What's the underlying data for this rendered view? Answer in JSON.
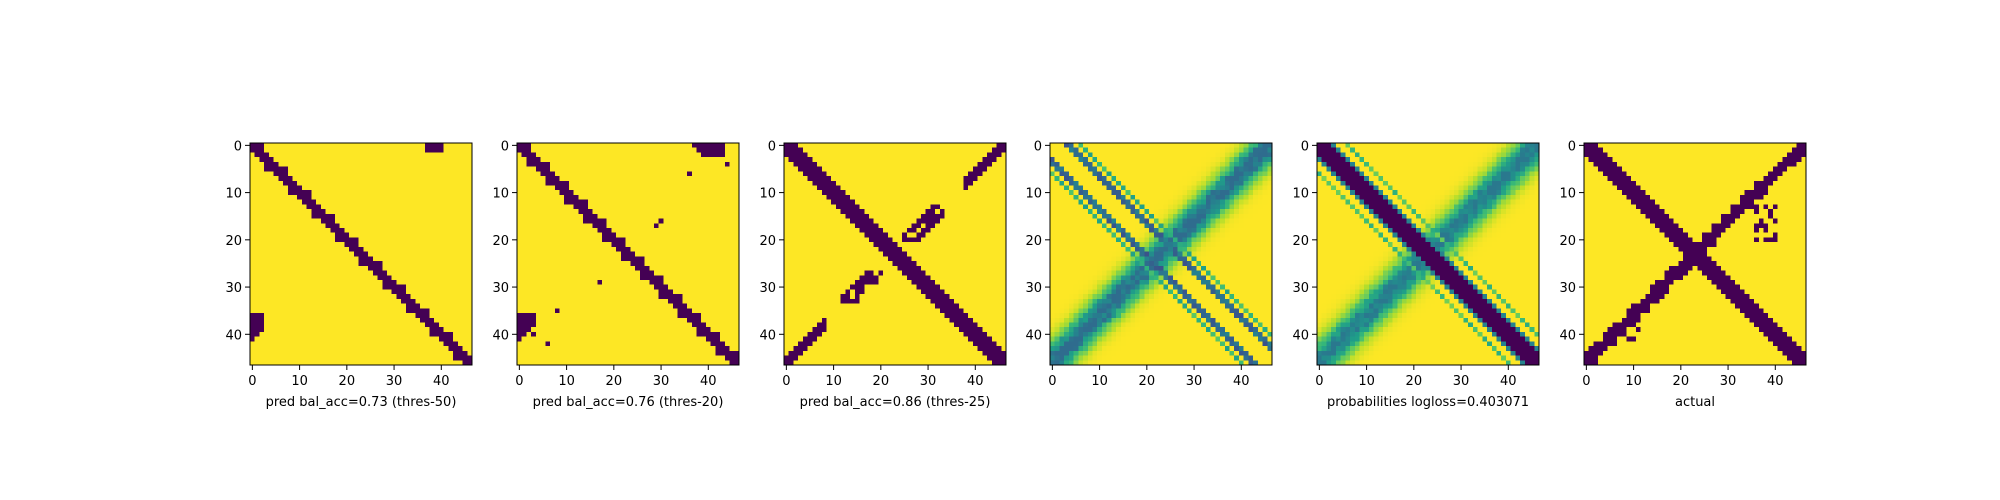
{
  "figure": {
    "colormap": "viridis",
    "colors": {
      "low": "#440154",
      "high": "#fde725"
    },
    "grid": false
  },
  "chart_data": [
    {
      "type": "heatmap",
      "xlabel": "pred bal_acc=0.73 (thres-50)",
      "size": 47,
      "xticks": [
        0,
        10,
        20,
        30,
        40
      ],
      "yticks": [
        0,
        10,
        20,
        30,
        40
      ],
      "xlim": [
        0,
        46
      ],
      "ylim": [
        46,
        0
      ],
      "pattern": {
        "kind": "binary",
        "main_diagonal_band": true,
        "anti_diagonal_band": false,
        "spots": [
          "top-right corner",
          "bottom-left corner"
        ]
      }
    },
    {
      "type": "heatmap",
      "xlabel": "pred bal_acc=0.76 (thres-20)",
      "size": 47,
      "xticks": [
        0,
        10,
        20,
        30,
        40
      ],
      "yticks": [
        0,
        10,
        20,
        30,
        40
      ],
      "xlim": [
        0,
        46
      ],
      "ylim": [
        46,
        0
      ],
      "pattern": {
        "kind": "binary",
        "main_diagonal_band": true,
        "anti_diagonal_band": false,
        "spots": [
          "top-right corner",
          "bottom-left corner",
          "scattered specks"
        ]
      }
    },
    {
      "type": "heatmap",
      "xlabel": "pred bal_acc=0.86 (thres-25)",
      "size": 47,
      "xticks": [
        0,
        10,
        20,
        30,
        40
      ],
      "yticks": [
        0,
        10,
        20,
        30,
        40
      ],
      "xlim": [
        0,
        46
      ],
      "ylim": [
        46,
        0
      ],
      "pattern": {
        "kind": "binary",
        "main_diagonal_band": true,
        "anti_diagonal_band": "partial",
        "spots": [
          "top-right arm",
          "bottom-left arm"
        ]
      }
    },
    {
      "type": "heatmap",
      "xlabel": "",
      "size": 47,
      "xticks": [
        0,
        10,
        20,
        30,
        40
      ],
      "yticks": [
        0,
        10,
        20,
        30,
        40
      ],
      "xlim": [
        0,
        46
      ],
      "ylim": [
        46,
        0
      ],
      "pattern": {
        "kind": "continuous",
        "main_diagonal_band": "double thin lines",
        "anti_diagonal_band": "diffuse"
      }
    },
    {
      "type": "heatmap",
      "xlabel": "probabilities logloss=0.403071",
      "size": 47,
      "xticks": [
        0,
        10,
        20,
        30,
        40
      ],
      "yticks": [
        0,
        10,
        20,
        30,
        40
      ],
      "xlim": [
        0,
        46
      ],
      "ylim": [
        46,
        0
      ],
      "pattern": {
        "kind": "continuous",
        "main_diagonal_band": true,
        "anti_diagonal_band": "diffuse"
      }
    },
    {
      "type": "heatmap",
      "xlabel": "actual",
      "size": 47,
      "xticks": [
        0,
        10,
        20,
        30,
        40
      ],
      "yticks": [
        0,
        10,
        20,
        30,
        40
      ],
      "xlim": [
        0,
        46
      ],
      "ylim": [
        46,
        0
      ],
      "pattern": {
        "kind": "binary",
        "main_diagonal_band": true,
        "anti_diagonal_band": true
      }
    }
  ]
}
